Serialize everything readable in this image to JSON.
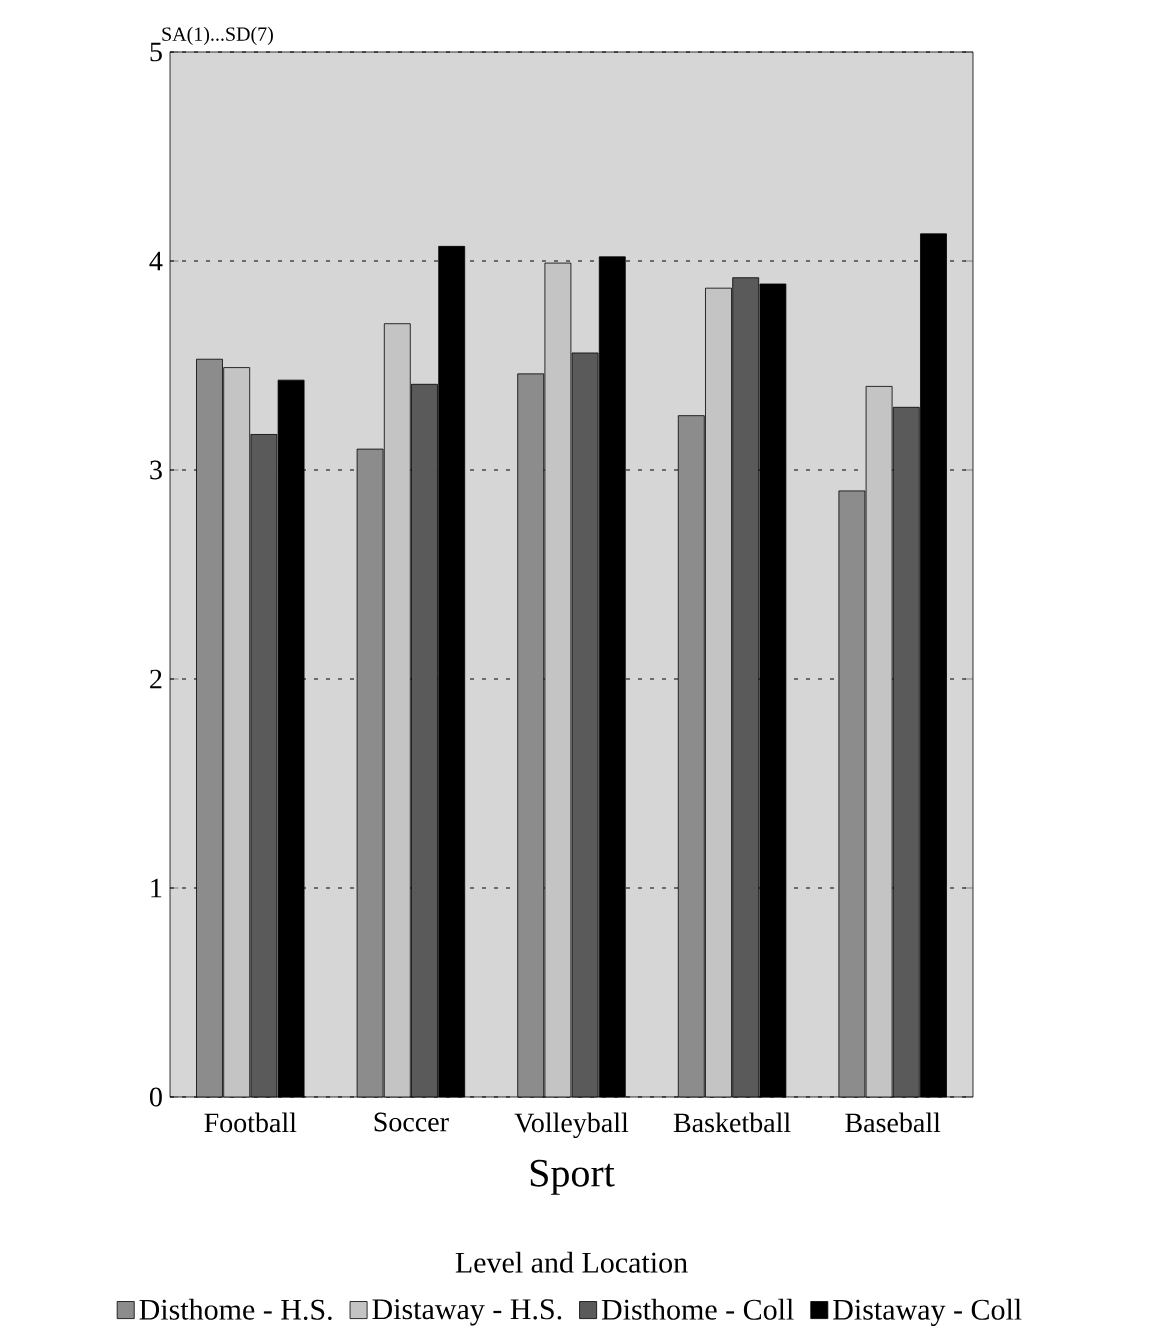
{
  "chart_data": {
    "type": "bar",
    "xlabel": "Sport",
    "ylabel": "SA(1)...SD(7)",
    "legend_title": "Level and Location",
    "categories": [
      "Football",
      "Soccer",
      "Volleyball",
      "Basketball",
      "Baseball"
    ],
    "series": [
      {
        "name": "Disthome - H.S.",
        "color": "#8c8c8c",
        "values": [
          3.53,
          3.1,
          3.46,
          3.26,
          2.9
        ]
      },
      {
        "name": "Distaway - H.S.",
        "color": "#c4c4c4",
        "values": [
          3.49,
          3.7,
          3.99,
          3.87,
          3.4
        ]
      },
      {
        "name": "Disthome - Coll",
        "color": "#5a5a5a",
        "values": [
          3.17,
          3.41,
          3.56,
          3.92,
          3.3
        ]
      },
      {
        "name": "Distaway - Coll",
        "color": "#000000",
        "values": [
          3.43,
          4.07,
          4.02,
          3.89,
          4.13
        ]
      }
    ],
    "ylim": [
      0,
      5
    ],
    "yticks": [
      0,
      1,
      2,
      3,
      4,
      5
    ],
    "grid": "y",
    "legend": "bottom"
  }
}
